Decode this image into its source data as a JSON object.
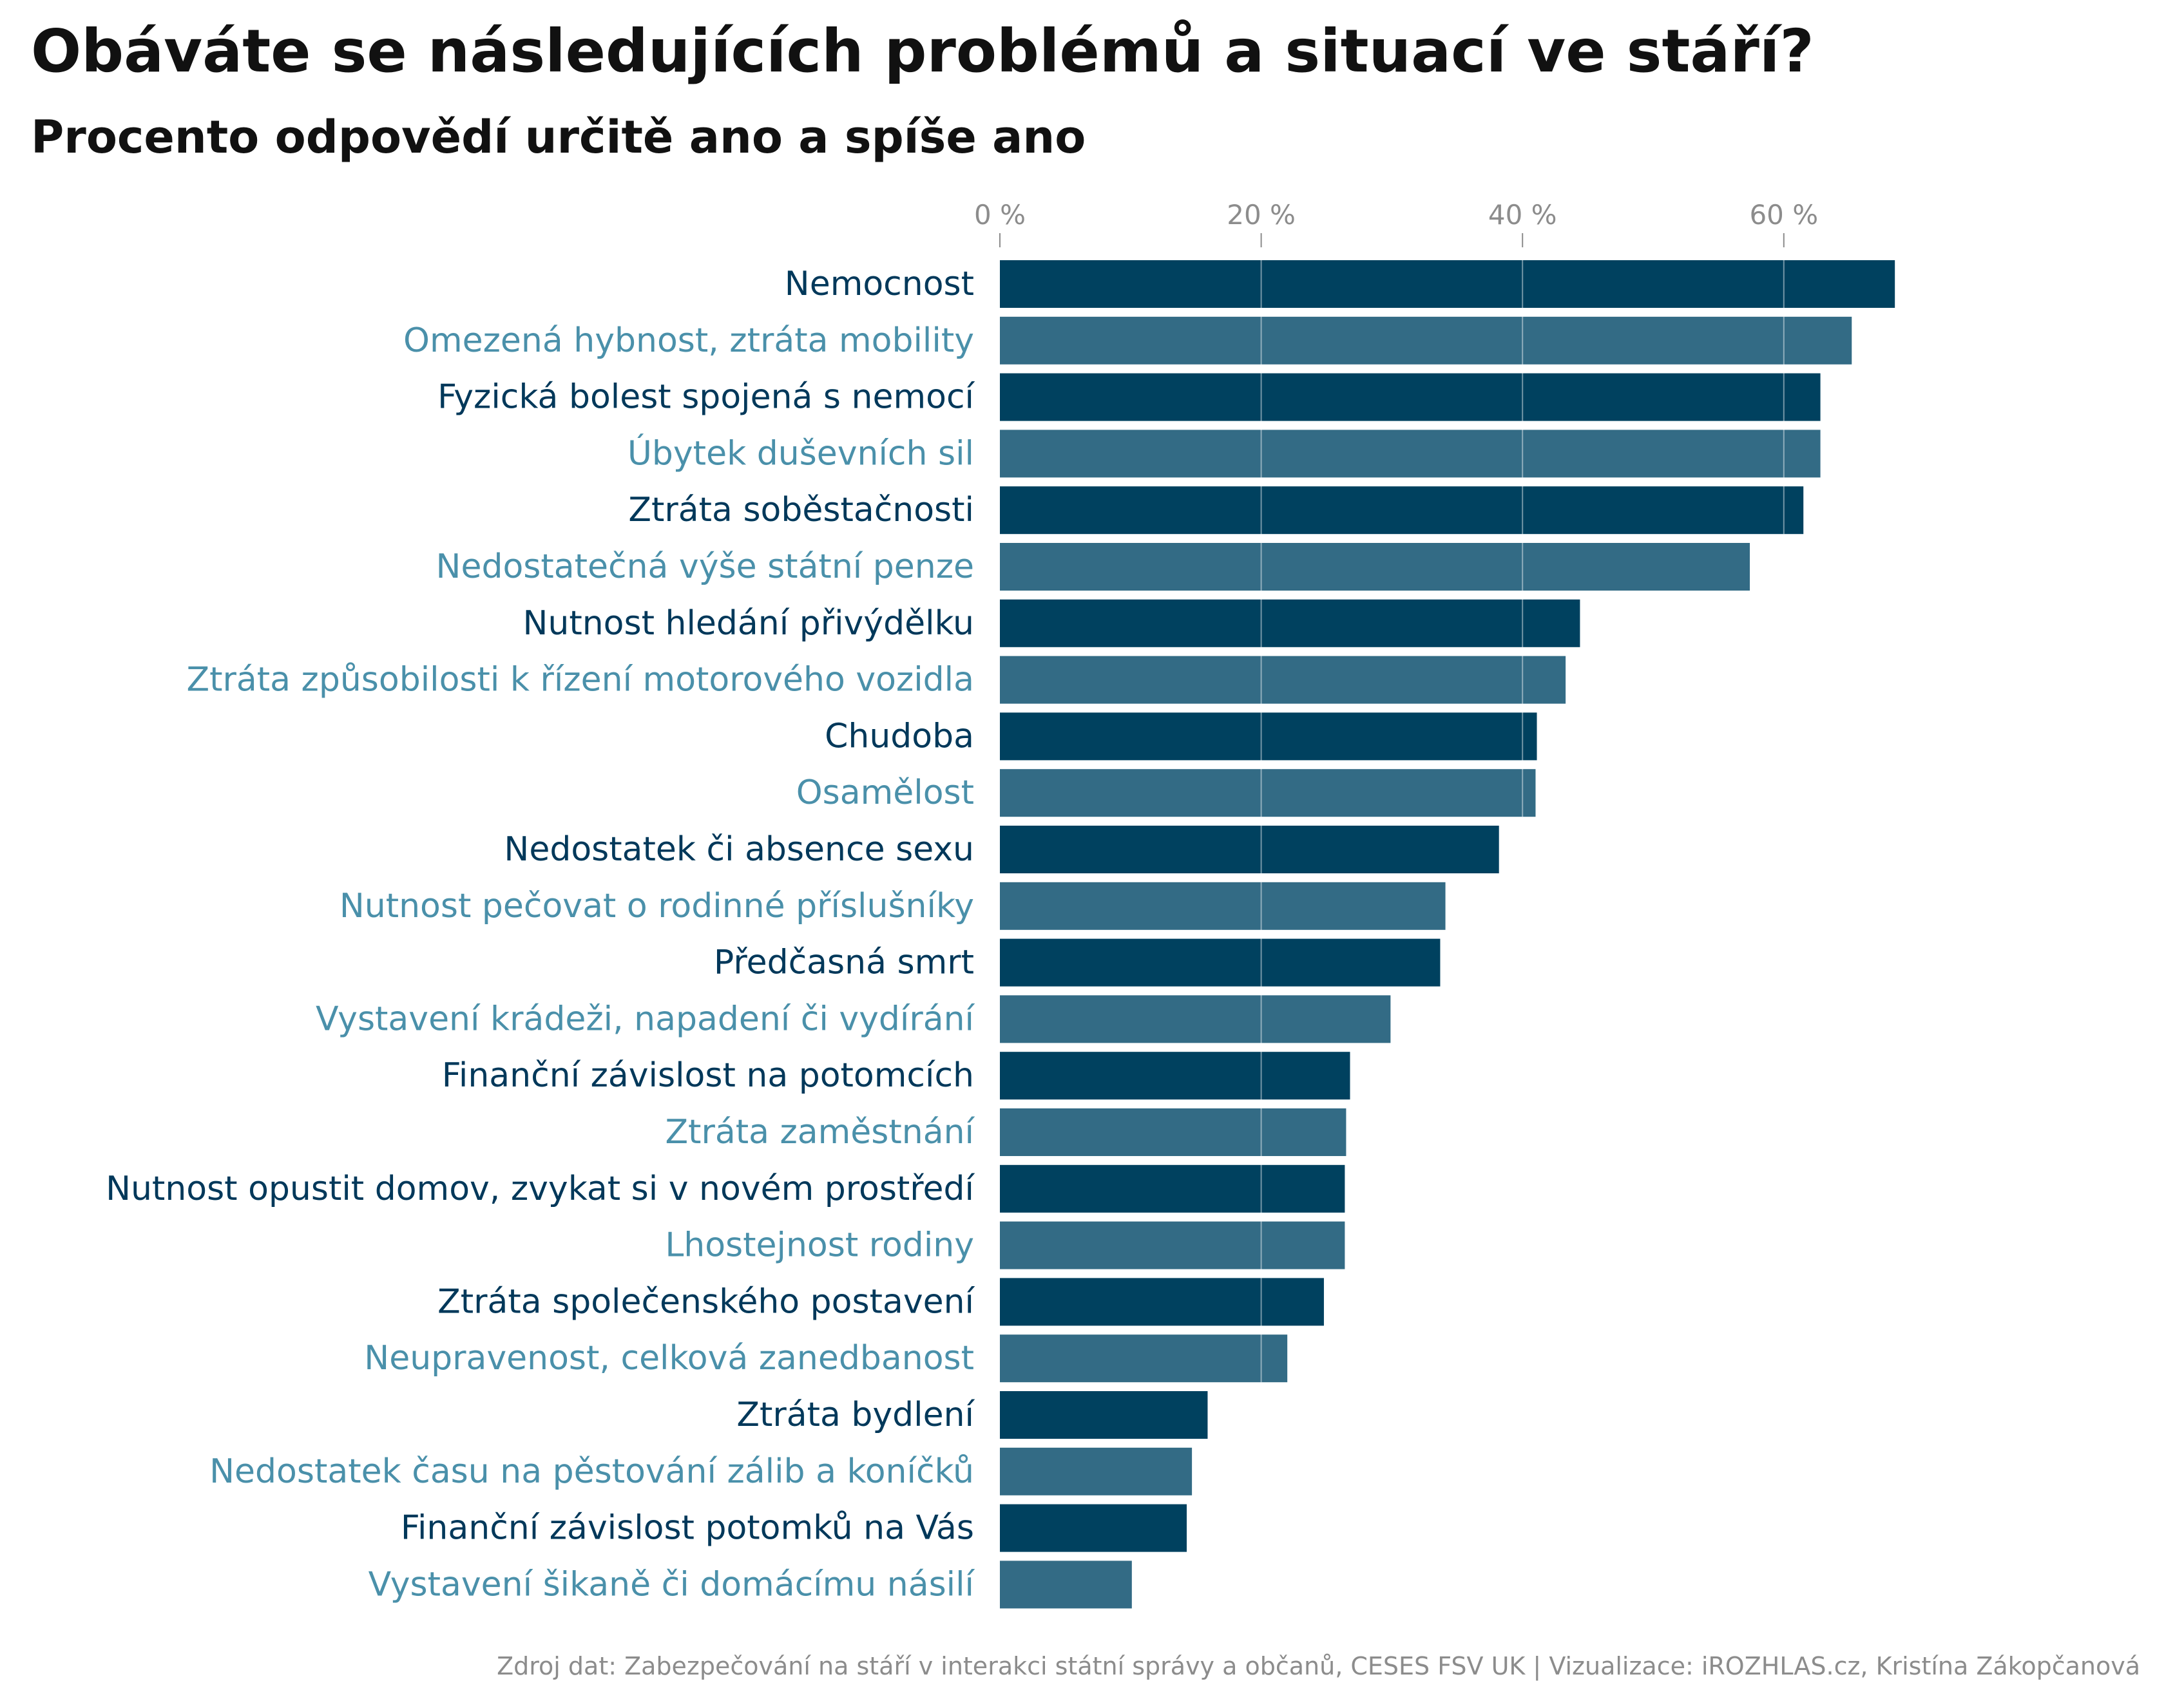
{
  "chart_data": {
    "type": "bar",
    "orientation": "horizontal",
    "title": "Obáváte se následujících problémů a situací ve stáří?",
    "subtitle": "Procento odpovědí určitě ano a spíše ano",
    "source": "Zdroj dat: Zabezpečování na stáří v interakci státní správy a občanů, CESES FSV UK | Vizualizace: iROZHLAS.cz, Kristína Zákopčanová",
    "xlim": [
      0,
      68.5
    ],
    "x_ticks": [
      {
        "value": 0,
        "label": "0 %"
      },
      {
        "value": 20,
        "label": "20 %"
      },
      {
        "value": 40,
        "label": "40 %"
      },
      {
        "value": 60,
        "label": "60 %"
      }
    ],
    "grid": true,
    "categories": [
      "Nemocnost",
      "Omezená hybnost, ztráta mobility",
      "Fyzická bolest spojená s nemocí",
      "Úbytek duševních sil",
      "Ztráta soběstačnosti",
      "Nedostatečná výše státní penze",
      "Nutnost hledání přivýdělku",
      "Ztráta způsobilosti k řízení motorového vozidla",
      "Chudoba",
      "Osamělost",
      "Nedostatek či absence sexu",
      "Nutnost pečovat o rodinné příslušníky",
      "Předčasná smrt",
      "Vystavení krádeži, napadení či vydírání",
      "Finanční závislost na potomcích",
      "Ztráta zaměstnání",
      "Nutnost opustit domov, zvykat si v novém prostředí",
      "Lhostejnost rodiny",
      "Ztráta společenského postavení",
      "Neupravenost, celková zanedbanost",
      "Ztráta bydlení",
      "Nedostatek času na pěstování zálib a koníčků",
      "Finanční závislost potomků na Vás",
      "Vystavení šikaně či domácímu násilí"
    ],
    "values": [
      68.5,
      65.2,
      62.8,
      62.8,
      61.5,
      57.4,
      44.4,
      43.3,
      41.1,
      41.0,
      38.2,
      34.1,
      33.7,
      29.9,
      26.8,
      26.5,
      26.4,
      26.4,
      24.8,
      22.0,
      15.9,
      14.7,
      14.3,
      10.1
    ],
    "colors": {
      "bar_dark": "#00415f",
      "bar_light": "#336b85",
      "label_dark": "#00385a",
      "label_light": "#4a90aa",
      "grid": "#ffffff",
      "tick": "#8c8c8c"
    }
  }
}
